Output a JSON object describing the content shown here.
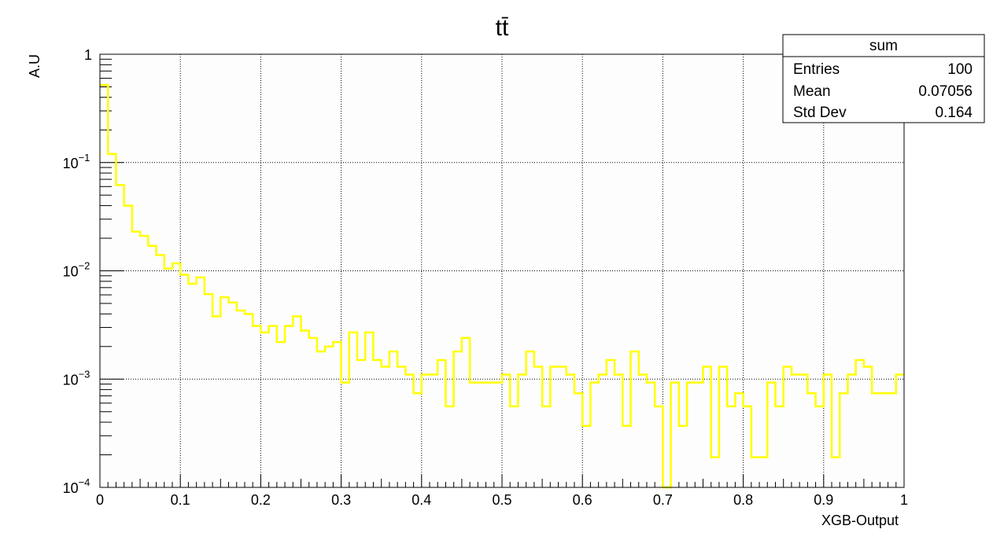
{
  "chart_data": {
    "type": "histogram",
    "title": "tt̄",
    "xlabel": "XGB-Output",
    "ylabel": "A.U",
    "xlim": [
      0,
      1
    ],
    "ylim": [
      0.0001,
      1
    ],
    "yscale": "log",
    "grid": true,
    "line_color": "#ffff00",
    "x_ticks": [
      "0",
      "0.1",
      "0.2",
      "0.3",
      "0.4",
      "0.5",
      "0.6",
      "0.7",
      "0.8",
      "0.9",
      "1"
    ],
    "y_ticks": [
      {
        "base": "1",
        "exp": ""
      },
      {
        "base": "10",
        "exp": "−1"
      },
      {
        "base": "10",
        "exp": "−2"
      },
      {
        "base": "10",
        "exp": "−3"
      },
      {
        "base": "10",
        "exp": "−4"
      }
    ],
    "bin_edges_start": 0,
    "bin_width": 0.01,
    "values": [
      0.52,
      0.12,
      0.062,
      0.04,
      0.023,
      0.021,
      0.017,
      0.014,
      0.0105,
      0.0117,
      0.0092,
      0.0076,
      0.0087,
      0.0061,
      0.0038,
      0.0057,
      0.0051,
      0.0043,
      0.004,
      0.0031,
      0.0027,
      0.0031,
      0.0022,
      0.0031,
      0.0038,
      0.0028,
      0.0024,
      0.0018,
      0.002,
      0.0022,
      0.00093,
      0.0027,
      0.0015,
      0.0027,
      0.0015,
      0.0013,
      0.0018,
      0.0013,
      0.0011,
      0.00074,
      0.0011,
      0.0011,
      0.0015,
      0.00056,
      0.0018,
      0.0024,
      0.00093,
      0.00093,
      0.00093,
      0.00093,
      0.0011,
      0.00056,
      0.0011,
      0.0018,
      0.0013,
      0.00056,
      0.0013,
      0.0013,
      0.0011,
      0.00074,
      0.00037,
      0.00093,
      0.0011,
      0.0015,
      0.0011,
      0.00037,
      0.0018,
      0.0011,
      0.00093,
      0.00056,
      0.0001,
      0.00093,
      0.00037,
      0.00093,
      0.00093,
      0.0013,
      0.00019,
      0.0013,
      0.00056,
      0.00074,
      0.00056,
      0.00019,
      0.00019,
      0.00093,
      0.00056,
      0.0013,
      0.0011,
      0.0011,
      0.00074,
      0.00056,
      0.0011,
      0.00019,
      0.00074,
      0.0011,
      0.0015,
      0.0013,
      0.00074,
      0.00074,
      0.00074,
      0.0011
    ],
    "stats": {
      "name": "sum",
      "rows": [
        {
          "label": "Entries",
          "value": "100"
        },
        {
          "label": "Mean",
          "value": "0.07056"
        },
        {
          "label": "Std Dev",
          "value": "0.164"
        }
      ]
    }
  }
}
